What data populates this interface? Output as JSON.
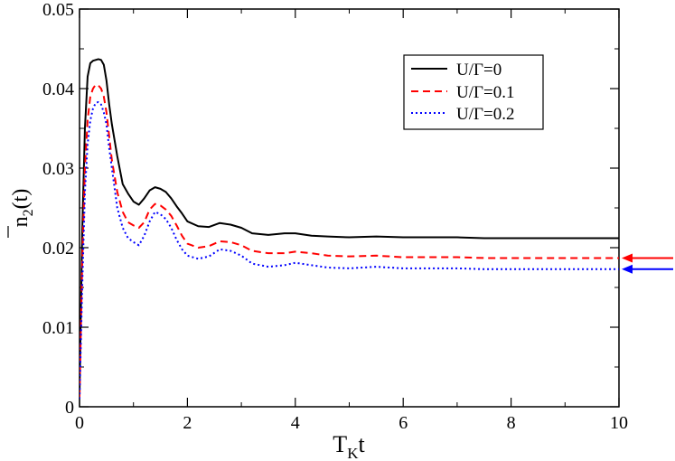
{
  "chart_data": {
    "type": "line",
    "xlabel_main": "T",
    "xlabel_sub": "K",
    "xlabel_tail": "t",
    "ylabel_main": "n",
    "ylabel_sub": "2",
    "ylabel_tail": "(t)",
    "xlim": [
      0,
      10
    ],
    "ylim": [
      0,
      0.05
    ],
    "xticks": [
      0,
      2,
      4,
      6,
      8,
      10
    ],
    "xtick_labels": [
      "0",
      "2",
      "4",
      "6",
      "8",
      "10"
    ],
    "yticks": [
      0,
      0.01,
      0.02,
      0.03,
      0.04,
      0.05
    ],
    "ytick_labels": [
      "0",
      "0.01",
      "0.02",
      "0.03",
      "0.04",
      "0.05"
    ],
    "grid": false,
    "legend_position": "top-right",
    "series": [
      {
        "name": "U/Γ=0",
        "color": "#000000",
        "dash": "solid",
        "x": [
          0,
          0.05,
          0.1,
          0.15,
          0.2,
          0.25,
          0.3,
          0.35,
          0.4,
          0.45,
          0.5,
          0.55,
          0.6,
          0.7,
          0.8,
          0.9,
          1.0,
          1.1,
          1.2,
          1.3,
          1.4,
          1.5,
          1.6,
          1.7,
          1.8,
          1.9,
          2.0,
          2.2,
          2.4,
          2.6,
          2.8,
          3.0,
          3.2,
          3.5,
          3.8,
          4.0,
          4.3,
          4.6,
          5.0,
          5.5,
          6.0,
          6.5,
          7.0,
          7.5,
          8.0,
          8.5,
          9.0,
          9.5,
          10.0
        ],
        "y": [
          0.0015,
          0.022,
          0.035,
          0.0415,
          0.0432,
          0.0435,
          0.0436,
          0.0437,
          0.0436,
          0.043,
          0.041,
          0.038,
          0.0355,
          0.0315,
          0.028,
          0.0268,
          0.0258,
          0.0254,
          0.0262,
          0.0272,
          0.0276,
          0.0274,
          0.027,
          0.0262,
          0.0252,
          0.0243,
          0.0233,
          0.0227,
          0.0226,
          0.0231,
          0.0229,
          0.0225,
          0.0218,
          0.0216,
          0.0218,
          0.0218,
          0.0215,
          0.0214,
          0.0213,
          0.0214,
          0.0213,
          0.0213,
          0.0213,
          0.0212,
          0.0212,
          0.0212,
          0.0212,
          0.0212,
          0.0212
        ]
      },
      {
        "name": "U/Γ=0.1",
        "color": "#ff0000",
        "dash": "dashed",
        "x": [
          0,
          0.05,
          0.1,
          0.15,
          0.2,
          0.25,
          0.3,
          0.35,
          0.4,
          0.45,
          0.5,
          0.55,
          0.6,
          0.7,
          0.8,
          0.9,
          1.0,
          1.1,
          1.2,
          1.3,
          1.4,
          1.5,
          1.6,
          1.7,
          1.8,
          1.9,
          2.0,
          2.2,
          2.4,
          2.6,
          2.8,
          3.0,
          3.2,
          3.5,
          3.8,
          4.0,
          4.3,
          4.6,
          5.0,
          5.5,
          6.0,
          6.5,
          7.0,
          7.5,
          8.0,
          8.5,
          9.0,
          9.5,
          10.0
        ],
        "y": [
          0.0012,
          0.018,
          0.03,
          0.036,
          0.039,
          0.04,
          0.0405,
          0.0404,
          0.04,
          0.039,
          0.037,
          0.034,
          0.031,
          0.027,
          0.0245,
          0.0232,
          0.0228,
          0.0225,
          0.0232,
          0.0248,
          0.0255,
          0.0253,
          0.0248,
          0.024,
          0.0228,
          0.0215,
          0.0205,
          0.02,
          0.0202,
          0.0208,
          0.0207,
          0.0203,
          0.0196,
          0.0193,
          0.0193,
          0.0195,
          0.0193,
          0.019,
          0.0189,
          0.019,
          0.0188,
          0.0188,
          0.0188,
          0.0187,
          0.0187,
          0.0187,
          0.0187,
          0.0187,
          0.0187
        ]
      },
      {
        "name": "U/Γ=0.2",
        "color": "#0000ff",
        "dash": "dotted",
        "x": [
          0,
          0.05,
          0.1,
          0.15,
          0.2,
          0.25,
          0.3,
          0.35,
          0.4,
          0.45,
          0.5,
          0.55,
          0.6,
          0.7,
          0.8,
          0.9,
          1.0,
          1.1,
          1.2,
          1.3,
          1.4,
          1.5,
          1.6,
          1.7,
          1.8,
          1.9,
          2.0,
          2.2,
          2.4,
          2.6,
          2.8,
          3.0,
          3.2,
          3.5,
          3.8,
          4.0,
          4.3,
          4.6,
          5.0,
          5.5,
          6.0,
          6.5,
          7.0,
          7.5,
          8.0,
          8.5,
          9.0,
          9.5,
          10.0
        ],
        "y": [
          0.001,
          0.015,
          0.027,
          0.033,
          0.036,
          0.0375,
          0.0382,
          0.0383,
          0.038,
          0.037,
          0.0355,
          0.0325,
          0.03,
          0.025,
          0.0225,
          0.0212,
          0.0207,
          0.0203,
          0.0215,
          0.0233,
          0.0245,
          0.0242,
          0.0236,
          0.0225,
          0.021,
          0.0198,
          0.019,
          0.0186,
          0.0189,
          0.0198,
          0.0196,
          0.019,
          0.018,
          0.0176,
          0.0178,
          0.0181,
          0.0178,
          0.0175,
          0.0174,
          0.0176,
          0.0174,
          0.0174,
          0.0174,
          0.0173,
          0.0173,
          0.0173,
          0.0173,
          0.0173,
          0.0173
        ]
      }
    ],
    "annotations": [
      {
        "type": "arrow",
        "color": "#ff0000",
        "y": 0.0187,
        "direction": "left"
      },
      {
        "type": "arrow",
        "color": "#0000ff",
        "y": 0.0173,
        "direction": "left"
      }
    ]
  }
}
